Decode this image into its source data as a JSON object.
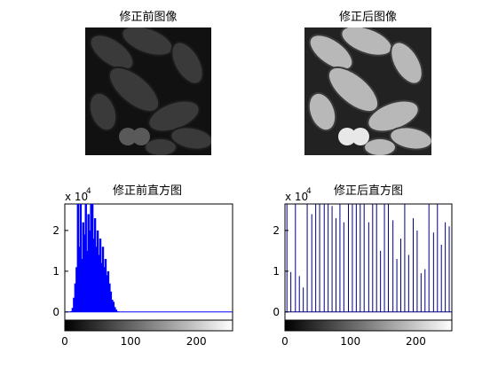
{
  "panels": {
    "before_image": {
      "title": "修正前图像"
    },
    "after_image": {
      "title": "修正后图像"
    }
  },
  "chart_data": [
    {
      "type": "bar",
      "title": "修正前直方图",
      "xlabel": "",
      "ylabel": "",
      "y_exponent_label": "x 10",
      "y_exponent_power": "4",
      "xlim": [
        0,
        255
      ],
      "ylim": [
        -0.2,
        2.65
      ],
      "xticks": [
        "0",
        "100",
        "200"
      ],
      "yticks": [
        "0",
        "1",
        "2"
      ],
      "bar_color": "#0000ff",
      "colorbar": "grayscale 0-255",
      "series": [
        {
          "x": [
            10,
            12,
            14,
            16,
            18,
            20,
            22,
            24,
            26,
            28,
            30,
            32,
            34,
            36,
            38,
            40,
            42,
            44,
            46,
            48,
            50,
            52,
            54,
            56,
            58,
            60,
            62,
            64,
            66,
            68,
            70,
            72,
            74,
            76,
            78,
            80
          ],
          "values": [
            0.02,
            0.1,
            0.35,
            0.7,
            1.1,
            2.65,
            1.6,
            2.65,
            1.3,
            2.2,
            1.9,
            2.65,
            1.5,
            2.4,
            2.0,
            2.65,
            2.65,
            1.8,
            2.3,
            1.6,
            2.0,
            1.4,
            1.8,
            1.2,
            1.6,
            1.1,
            1.3,
            0.9,
            1.0,
            0.7,
            0.5,
            0.3,
            0.25,
            0.12,
            0.06,
            0.02
          ]
        }
      ]
    },
    {
      "type": "bar",
      "title": "修正后直方图",
      "xlabel": "",
      "ylabel": "",
      "y_exponent_label": "x 10",
      "y_exponent_power": "4",
      "xlim": [
        0,
        255
      ],
      "ylim": [
        -0.2,
        2.65
      ],
      "xticks": [
        "0",
        "100",
        "200"
      ],
      "yticks": [
        "0",
        "1",
        "2"
      ],
      "bar_color": "#000080",
      "colorbar": "grayscale 0-255",
      "series": [
        {
          "x": [
            3,
            9,
            16,
            22,
            28,
            34,
            41,
            47,
            53,
            60,
            66,
            72,
            78,
            84,
            90,
            97,
            103,
            109,
            115,
            121,
            128,
            134,
            140,
            146,
            152,
            158,
            165,
            171,
            177,
            183,
            189,
            196,
            202,
            208,
            214,
            220,
            227,
            233,
            239,
            245,
            251
          ],
          "values": [
            2.65,
            0.98,
            2.65,
            0.88,
            0.6,
            2.65,
            2.4,
            2.65,
            2.65,
            2.65,
            2.65,
            2.6,
            2.3,
            2.65,
            2.2,
            2.65,
            2.65,
            2.65,
            2.65,
            2.65,
            2.2,
            2.65,
            2.65,
            1.5,
            2.65,
            2.65,
            2.25,
            1.3,
            1.8,
            2.65,
            1.4,
            2.3,
            2.0,
            0.95,
            1.05,
            2.65,
            1.95,
            2.65,
            1.65,
            2.2,
            2.1
          ]
        }
      ]
    }
  ]
}
